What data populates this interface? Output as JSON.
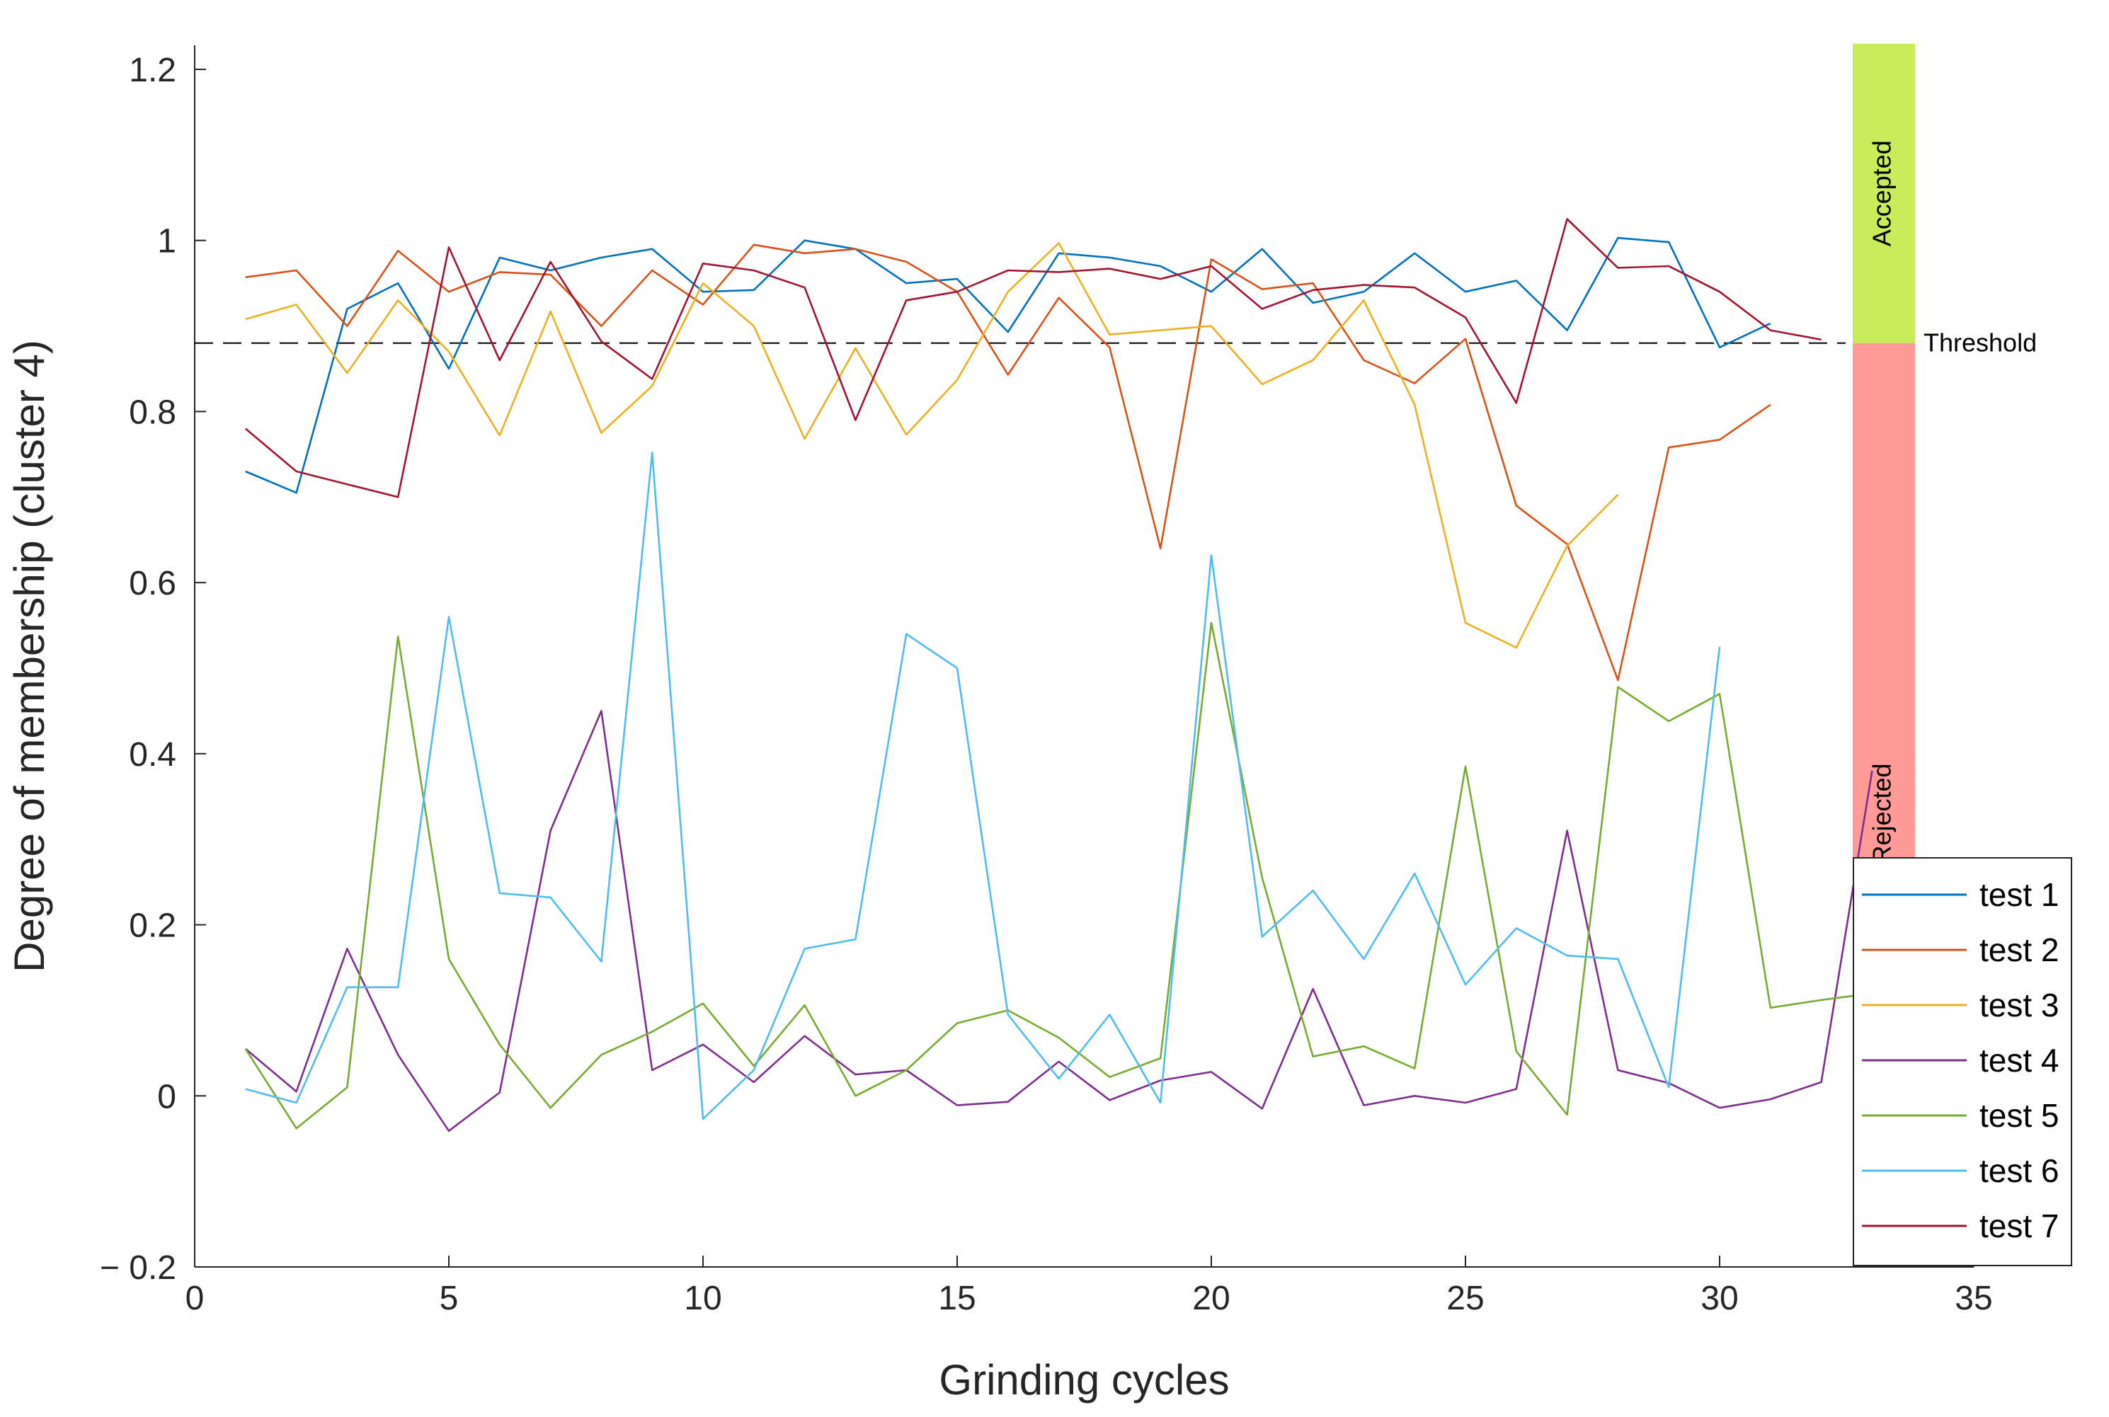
{
  "chart_data": {
    "type": "line",
    "xlabel": "Grinding cycles",
    "ylabel": "Degree of membership (cluster 4)",
    "xlim": [
      0,
      35
    ],
    "ylim": [
      -0.2,
      1.2
    ],
    "xticks": [
      0,
      5,
      10,
      15,
      20,
      25,
      30,
      35
    ],
    "yticks": [
      -0.2,
      0,
      0.2,
      0.4,
      0.6,
      0.8,
      1,
      1.2
    ],
    "xtick_labels": [
      "0",
      "5",
      "10",
      "15",
      "20",
      "25",
      "30",
      "35"
    ],
    "ytick_labels": [
      "− 0.2",
      "0",
      "0.2",
      "0.4",
      "0.6",
      "0.8",
      "1",
      "1.2"
    ],
    "grid": false,
    "legend_position": "bottom-right",
    "threshold": {
      "value": 0.88,
      "label": "Threshold",
      "style": "dashed",
      "color": "#000000"
    },
    "bands": [
      {
        "label": "Accepted",
        "from": 0.88,
        "to": 1.23,
        "color": "#c8ec5a"
      },
      {
        "label": "Rejected",
        "from": -0.2,
        "to": 0.88,
        "color": "#fd9a95"
      }
    ],
    "series": [
      {
        "name": "test 1",
        "color": "#0072BD",
        "x": [
          1,
          2,
          3,
          4,
          5,
          6,
          7,
          8,
          9,
          10,
          11,
          12,
          13,
          14,
          15,
          16,
          17,
          18,
          19,
          20,
          21,
          22,
          23,
          24,
          25,
          26,
          27,
          28,
          29,
          30,
          31
        ],
        "values": [
          0.73,
          0.705,
          0.92,
          0.95,
          0.85,
          0.98,
          0.965,
          0.98,
          0.99,
          0.94,
          0.942,
          1.0,
          0.99,
          0.95,
          0.955,
          0.893,
          0.985,
          0.98,
          0.97,
          0.94,
          0.99,
          0.927,
          0.94,
          0.985,
          0.94,
          0.953,
          0.895,
          1.003,
          0.998,
          0.875,
          0.903
        ]
      },
      {
        "name": "test 2",
        "color": "#D95319",
        "x": [
          1,
          2,
          3,
          4,
          5,
          6,
          7,
          8,
          9,
          10,
          11,
          12,
          13,
          14,
          15,
          16,
          17,
          18,
          19,
          20,
          21,
          22,
          23,
          24,
          25,
          26,
          27,
          28,
          29,
          30,
          31
        ],
        "values": [
          0.957,
          0.965,
          0.9,
          0.988,
          0.94,
          0.963,
          0.96,
          0.9,
          0.965,
          0.925,
          0.995,
          0.985,
          0.99,
          0.975,
          0.94,
          0.843,
          0.933,
          0.875,
          0.64,
          0.978,
          0.943,
          0.95,
          0.86,
          0.833,
          0.885,
          0.69,
          0.645,
          0.486,
          0.758,
          0.767,
          0.808
        ]
      },
      {
        "name": "test 3",
        "color": "#EDB120",
        "x": [
          1,
          2,
          3,
          4,
          5,
          6,
          7,
          8,
          9,
          10,
          11,
          12,
          13,
          14,
          15,
          16,
          17,
          18,
          19,
          20,
          21,
          22,
          23,
          24,
          25,
          26,
          27,
          28
        ],
        "values": [
          0.908,
          0.925,
          0.845,
          0.93,
          0.87,
          0.772,
          0.917,
          0.775,
          0.83,
          0.95,
          0.9,
          0.768,
          0.874,
          0.773,
          0.837,
          0.94,
          0.997,
          0.89,
          0.895,
          0.9,
          0.832,
          0.86,
          0.93,
          0.808,
          0.553,
          0.524,
          0.643,
          0.703
        ]
      },
      {
        "name": "test 4",
        "color": "#7E2F8E",
        "x": [
          1,
          2,
          3,
          4,
          5,
          6,
          7,
          8,
          9,
          10,
          11,
          12,
          13,
          14,
          15,
          16,
          17,
          18,
          19,
          20,
          21,
          22,
          23,
          24,
          25,
          26,
          27,
          28,
          29,
          30,
          31,
          32,
          33
        ],
        "values": [
          0.055,
          0.005,
          0.172,
          0.048,
          -0.041,
          0.004,
          0.31,
          0.45,
          0.03,
          0.06,
          0.016,
          0.07,
          0.025,
          0.03,
          -0.011,
          -0.007,
          0.04,
          -0.005,
          0.018,
          0.028,
          -0.015,
          0.125,
          -0.011,
          0.0,
          -0.008,
          0.008,
          0.31,
          0.03,
          0.015,
          -0.014,
          -0.004,
          0.016,
          0.38
        ]
      },
      {
        "name": "test 5",
        "color": "#77AC30",
        "x": [
          1,
          2,
          3,
          4,
          5,
          6,
          7,
          8,
          9,
          10,
          11,
          12,
          13,
          14,
          15,
          16,
          17,
          18,
          19,
          20,
          21,
          22,
          23,
          24,
          25,
          26,
          27,
          28,
          29,
          30,
          31,
          32,
          33
        ],
        "values": [
          0.055,
          -0.038,
          0.01,
          0.537,
          0.16,
          0.06,
          -0.014,
          0.048,
          0.075,
          0.108,
          0.035,
          0.106,
          0.0,
          0.03,
          0.085,
          0.1,
          0.068,
          0.022,
          0.044,
          0.553,
          0.255,
          0.046,
          0.058,
          0.032,
          0.385,
          0.052,
          -0.022,
          0.478,
          0.438,
          0.47,
          0.103,
          0.112,
          0.12
        ]
      },
      {
        "name": "test 6",
        "color": "#4DBEEE",
        "x": [
          1,
          2,
          3,
          4,
          5,
          6,
          7,
          8,
          9,
          10,
          11,
          12,
          13,
          14,
          15,
          16,
          17,
          18,
          19,
          20,
          21,
          22,
          23,
          24,
          25,
          26,
          27,
          28,
          29,
          30
        ],
        "values": [
          0.008,
          -0.008,
          0.127,
          0.127,
          0.56,
          0.237,
          0.232,
          0.157,
          0.752,
          -0.027,
          0.03,
          0.172,
          0.183,
          0.54,
          0.5,
          0.095,
          0.02,
          0.095,
          -0.008,
          0.632,
          0.186,
          0.24,
          0.16,
          0.26,
          0.13,
          0.196,
          0.164,
          0.16,
          0.01,
          0.525
        ]
      },
      {
        "name": "test 7",
        "color": "#A2142F",
        "x": [
          1,
          2,
          3,
          4,
          5,
          6,
          7,
          8,
          9,
          10,
          11,
          12,
          13,
          14,
          15,
          16,
          17,
          18,
          19,
          20,
          21,
          22,
          23,
          24,
          25,
          26,
          27,
          28,
          29,
          30,
          31,
          32
        ],
        "values": [
          0.78,
          0.73,
          0.715,
          0.7,
          0.992,
          0.86,
          0.975,
          0.882,
          0.838,
          0.973,
          0.965,
          0.945,
          0.79,
          0.93,
          0.94,
          0.965,
          0.963,
          0.967,
          0.955,
          0.97,
          0.92,
          0.942,
          0.948,
          0.945,
          0.91,
          0.81,
          1.025,
          0.968,
          0.97,
          0.94,
          0.895,
          0.884
        ]
      }
    ]
  }
}
